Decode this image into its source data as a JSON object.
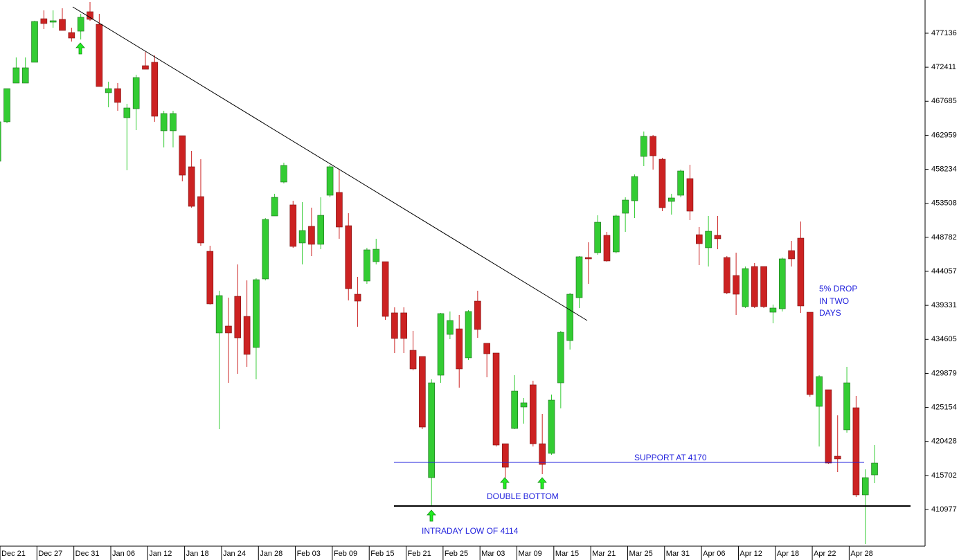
{
  "chart_data": {
    "type": "candlestick",
    "categories": [
      null,
      "Dec 21",
      null,
      null,
      null,
      "Dec 27",
      null,
      null,
      null,
      "Dec 31",
      null,
      null,
      null,
      "Jan 06",
      null,
      null,
      null,
      "Jan 12",
      null,
      null,
      null,
      "Jan 18",
      null,
      null,
      null,
      "Jan 24",
      null,
      null,
      null,
      "Jan 28",
      null,
      null,
      null,
      "Feb 03",
      null,
      null,
      null,
      "Feb 09",
      null,
      null,
      null,
      "Feb 15",
      null,
      null,
      null,
      "Feb 21",
      null,
      null,
      null,
      "Feb 25",
      null,
      null,
      null,
      "Mar 03",
      null,
      null,
      null,
      "Mar 09",
      null,
      null,
      null,
      "Mar 15",
      null,
      null,
      null,
      "Mar 21",
      null,
      null,
      null,
      "Mar 25",
      null,
      null,
      null,
      "Mar 31",
      null,
      null,
      null,
      "Apr 06",
      null,
      null,
      null,
      "Apr 12",
      null,
      null,
      null,
      "Apr 18",
      null,
      null,
      null,
      "Apr 22",
      null,
      null,
      null,
      "Apr 28",
      null,
      null
    ],
    "open": [
      459350,
      464830,
      470210,
      470210,
      473100,
      479150,
      478670,
      479060,
      477230,
      477420,
      480120,
      478380,
      468870,
      469440,
      465400,
      466650,
      472620,
      473100,
      463580,
      463580,
      462900,
      458580,
      454440,
      446840,
      435500,
      436460,
      440590,
      437800,
      433480,
      443000,
      451750,
      456460,
      453290,
      448000,
      450310,
      447810,
      454630,
      455020,
      450400,
      440880,
      442710,
      445400,
      445400,
      438290,
      438290,
      433090,
      432230,
      415400,
      429630,
      435300,
      436070,
      432040,
      439920,
      434060,
      432710,
      420110,
      422230,
      425210,
      428290,
      420110,
      418770,
      428570,
      434440,
      440400,
      445980,
      446650,
      449060,
      446750,
      452130,
      453860,
      460020,
      462810,
      459630,
      453770,
      454630,
      456940,
      449150,
      447330,
      449060,
      445980,
      443480,
      439150,
      444730,
      444730,
      438380,
      438860,
      446940,
      448670,
      438380,
      425300,
      427610,
      418380,
      422040,
      425110,
      413000,
      415780
    ],
    "high": [
      465400,
      469440,
      473770,
      473770,
      478870,
      480310,
      480310,
      480600,
      477900,
      479830,
      481460,
      479830,
      470400,
      470210,
      467330,
      471370,
      474540,
      474060,
      466360,
      466360,
      462900,
      460790,
      459630,
      447610,
      441360,
      440400,
      445020,
      442800,
      443090,
      451460,
      454830,
      459150,
      453860,
      453670,
      452900,
      454340,
      458860,
      458190,
      452130,
      443290,
      447330,
      448580,
      445400,
      439060,
      439060,
      435790,
      432230,
      429050,
      438290,
      438480,
      438000,
      438670,
      441360,
      434060,
      432710,
      420110,
      429630,
      426460,
      428860,
      424250,
      426940,
      435790,
      441070,
      446170,
      448090,
      451840,
      449540,
      451940,
      454340,
      457520,
      463480,
      463000,
      459830,
      454830,
      458190,
      458860,
      450210,
      451750,
      451750,
      446170,
      446650,
      444730,
      445210,
      444730,
      439440,
      445980,
      448290,
      450980,
      438380,
      429630,
      427610,
      424050,
      430790,
      426750,
      416550,
      419920
    ],
    "low": [
      459150,
      464630,
      470210,
      470210,
      473100,
      477710,
      477900,
      477520,
      475980,
      476270,
      478870,
      469730,
      466850,
      466360,
      458100,
      463670,
      472130,
      464830,
      461270,
      461270,
      456560,
      452900,
      447610,
      439440,
      422130,
      428570,
      429820,
      430790,
      429050,
      442800,
      451750,
      456270,
      447330,
      445020,
      446170,
      447130,
      454340,
      448580,
      440020,
      436360,
      442320,
      445020,
      437320,
      432710,
      432710,
      430300,
      422130,
      411460,
      428570,
      434630,
      427900,
      431750,
      434820,
      429340,
      419730,
      415400,
      422130,
      422900,
      419730,
      415880,
      418570,
      425020,
      433190,
      438960,
      442320,
      446360,
      445400,
      446560,
      449540,
      451460,
      458670,
      458190,
      452420,
      451940,
      454340,
      451170,
      444920,
      444730,
      447130,
      440880,
      438000,
      438960,
      438960,
      438960,
      436840,
      438480,
      444730,
      438290,
      426650,
      419730,
      417320,
      416170,
      421650,
      412710,
      406170,
      414630
    ],
    "close": [
      464830,
      469440,
      472330,
      472330,
      478770,
      478480,
      478870,
      477520,
      476460,
      479350,
      479060,
      469730,
      469440,
      467520,
      466750,
      470980,
      472130,
      465600,
      465980,
      465980,
      457420,
      453090,
      448000,
      439540,
      440690,
      435500,
      434820,
      432520,
      442900,
      451270,
      454340,
      458770,
      447520,
      449730,
      447810,
      451840,
      458580,
      450210,
      441650,
      439920,
      447040,
      447130,
      437800,
      434730,
      434730,
      430500,
      422420,
      428570,
      438190,
      437230,
      430500,
      438480,
      435980,
      432610,
      419920,
      416840,
      427420,
      425790,
      420110,
      417230,
      426170,
      435590,
      440880,
      446080,
      445790,
      450880,
      445500,
      451750,
      453960,
      457230,
      462810,
      460110,
      452900,
      454250,
      458000,
      452420,
      447900,
      449630,
      448580,
      441070,
      440880,
      444440,
      439150,
      439150,
      438960,
      445790,
      445790,
      439250,
      426940,
      429440,
      417420,
      418000,
      428570,
      413000,
      415400,
      417420
    ],
    "up_color": "#33cc33",
    "down_color": "#cc2222",
    "ylim": [
      405880,
      481750
    ],
    "yticks": [
      410977,
      415702,
      420428,
      425154,
      429879,
      434605,
      439331,
      444057,
      448782,
      453508,
      458234,
      462959,
      467685,
      472411,
      477136
    ],
    "annotations": {
      "support": "SUPPORT AT 4170",
      "double_bottom": "DOUBLE BOTTOM",
      "intraday_low": "INTRADAY LOW OF 4114",
      "drop": [
        "5% DROP",
        "IN TWO",
        "DAYS"
      ]
    }
  }
}
